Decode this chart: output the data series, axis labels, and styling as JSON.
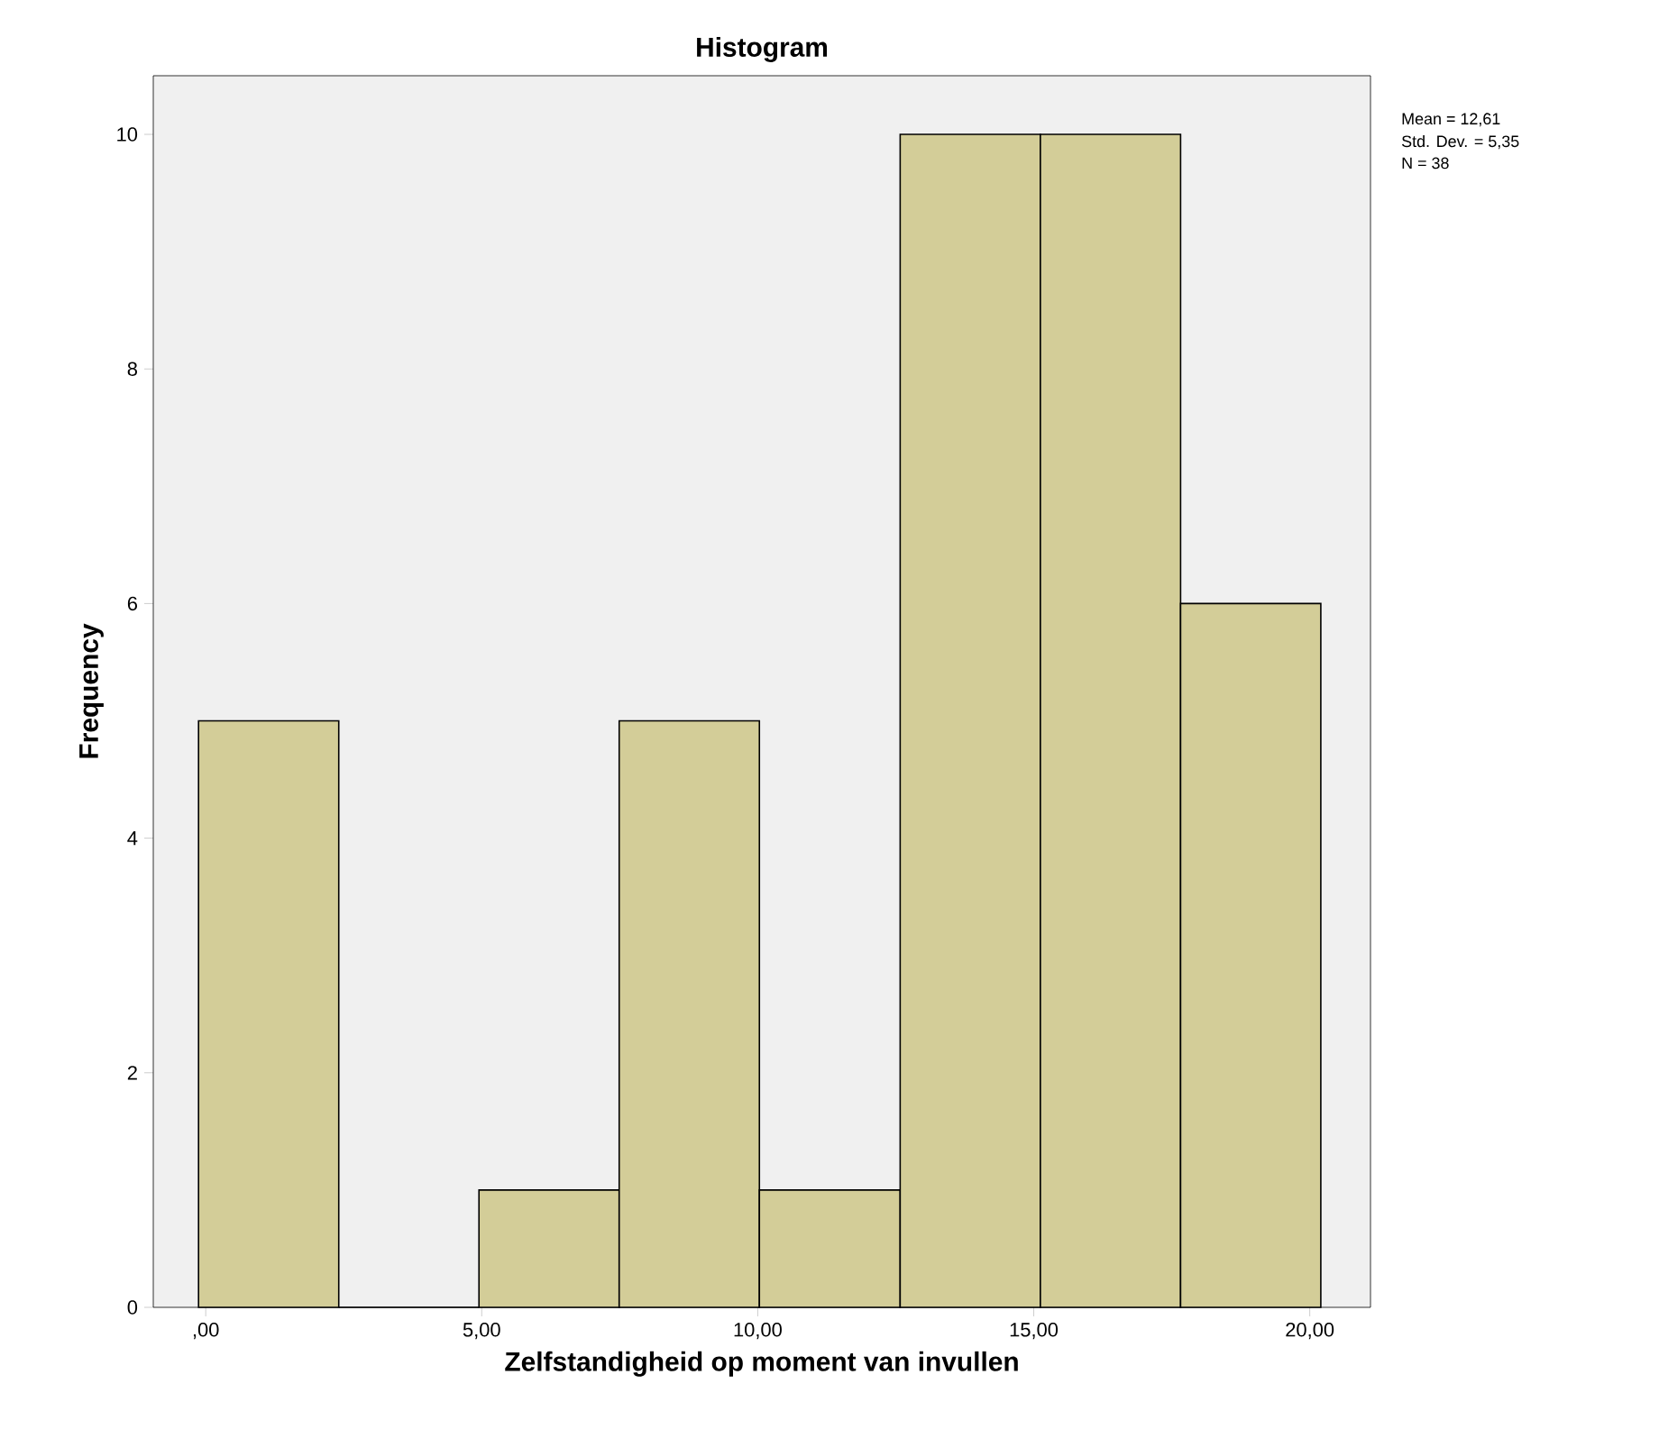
{
  "chart_data": {
    "type": "histogram",
    "title": "Histogram",
    "xlabel": "Zelfstandigheid op moment van invullen",
    "ylabel": "Frequency",
    "bins": [
      -0.13,
      2.41,
      4.95,
      7.49,
      10.03,
      12.58,
      15.12,
      17.66,
      20.2
    ],
    "values": [
      5,
      0,
      1,
      5,
      1,
      10,
      10,
      6
    ],
    "color": "#d3cd98",
    "xlim": [
      -0.95,
      21.1
    ],
    "ylim": [
      0,
      10.5
    ],
    "xticks": [
      {
        "value": 0,
        "label": ",00"
      },
      {
        "value": 5,
        "label": "5,00"
      },
      {
        "value": 10,
        "label": "10,00"
      },
      {
        "value": 15,
        "label": "15,00"
      },
      {
        "value": 20,
        "label": "20,00"
      }
    ],
    "yticks": [
      0,
      2,
      4,
      6,
      8,
      10
    ],
    "grid": false,
    "annotations": [
      "Mean = 12,61",
      "Std. Dev. = 5,35",
      "N = 38"
    ]
  }
}
